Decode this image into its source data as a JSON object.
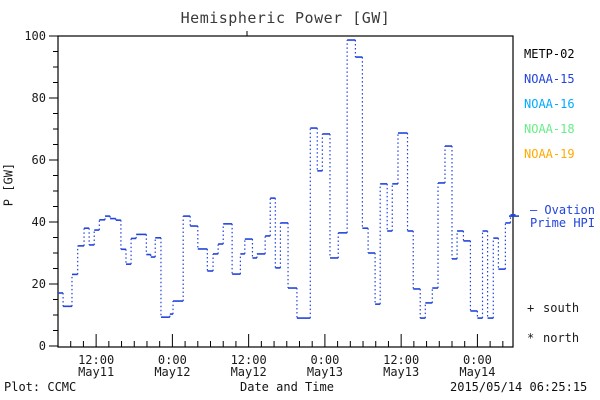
{
  "title": "Hemispheric Power [GW]",
  "colors": {
    "axis": "#000000",
    "title_text": "#3a3a3a",
    "curve": "#2244dd",
    "noaa16": "#00aaff",
    "noaa18": "#66ee88",
    "noaa19": "#ffaa00"
  },
  "y_axis": {
    "label": "P [GW]",
    "ticks": [
      0,
      20,
      40,
      60,
      80,
      100
    ],
    "minor_step": 5,
    "range": [
      0,
      100
    ]
  },
  "x_axis": {
    "label": "Date and Time",
    "major_ticks": [
      {
        "hour": 6,
        "time": "12:00",
        "date": "May11"
      },
      {
        "hour": 18,
        "time": "0:00",
        "date": "May12"
      },
      {
        "hour": 30,
        "time": "12:00",
        "date": "May12"
      },
      {
        "hour": 42,
        "time": "0:00",
        "date": "May13"
      },
      {
        "hour": 54,
        "time": "12:00",
        "date": "May13"
      },
      {
        "hour": 66,
        "time": "0:00",
        "date": "May14"
      }
    ],
    "minor_step_hours": 2,
    "range_hours": [
      0,
      71.6
    ]
  },
  "legend": {
    "satellites": [
      {
        "label": "METP-02",
        "color": "#000000"
      },
      {
        "label": "NOAA-15",
        "color": "#2244dd"
      },
      {
        "label": "NOAA-16",
        "color": "#00aaff"
      },
      {
        "label": "NOAA-18",
        "color": "#66ee88"
      },
      {
        "label": "NOAA-19",
        "color": "#ffaa00"
      }
    ],
    "series_marker": "—",
    "series_line1": "Ovation",
    "series_line2": "Prime HPI",
    "south": {
      "symbol": "+",
      "label": "south"
    },
    "north": {
      "symbol": "*",
      "label": "north"
    }
  },
  "footer": {
    "left": "Plot: CCMC",
    "right": "2015/05/14 06:25:15"
  },
  "chart_data": {
    "type": "line",
    "style": "step-histogram with dotted vertical connectors",
    "title": "Hemispheric Power [GW]",
    "xlabel": "Date and Time",
    "ylabel": "P [GW]",
    "ylim": [
      0,
      100
    ],
    "x_unit": "hours since 2015-05-11 06:00 UT",
    "xlim": [
      0,
      72
    ],
    "grid": false,
    "series_name": "Ovation Prime HPI",
    "x_end_hours": 72.0,
    "latest_value_marker_gw": 41.9,
    "points": [
      [
        0.0,
        17.1
      ],
      [
        0.8,
        12.8
      ],
      [
        2.2,
        23.1
      ],
      [
        3.1,
        32.3
      ],
      [
        4.1,
        38.0
      ],
      [
        4.9,
        32.6
      ],
      [
        5.7,
        37.4
      ],
      [
        6.5,
        40.7
      ],
      [
        7.4,
        41.9
      ],
      [
        8.2,
        41.1
      ],
      [
        9.1,
        40.6
      ],
      [
        9.9,
        31.2
      ],
      [
        10.7,
        26.4
      ],
      [
        11.5,
        34.7
      ],
      [
        12.3,
        36.0
      ],
      [
        13.9,
        29.5
      ],
      [
        14.6,
        28.7
      ],
      [
        15.3,
        34.9
      ],
      [
        16.2,
        9.3
      ],
      [
        17.6,
        10.3
      ],
      [
        18.1,
        14.5
      ],
      [
        19.7,
        41.9
      ],
      [
        20.8,
        38.7
      ],
      [
        22.0,
        31.3
      ],
      [
        23.5,
        24.2
      ],
      [
        24.4,
        29.7
      ],
      [
        25.2,
        32.9
      ],
      [
        26.0,
        39.4
      ],
      [
        27.4,
        23.2
      ],
      [
        28.7,
        29.7
      ],
      [
        29.4,
        34.5
      ],
      [
        30.6,
        28.4
      ],
      [
        31.3,
        29.7
      ],
      [
        32.6,
        35.5
      ],
      [
        33.4,
        47.7
      ],
      [
        34.2,
        25.2
      ],
      [
        35.0,
        39.7
      ],
      [
        36.2,
        18.7
      ],
      [
        37.6,
        9.0
      ],
      [
        39.7,
        70.3
      ],
      [
        40.8,
        56.5
      ],
      [
        41.6,
        68.4
      ],
      [
        42.8,
        28.4
      ],
      [
        44.1,
        36.5
      ],
      [
        45.5,
        98.7
      ],
      [
        46.8,
        93.2
      ],
      [
        47.9,
        38.0
      ],
      [
        48.8,
        30.0
      ],
      [
        49.9,
        13.5
      ],
      [
        50.7,
        52.3
      ],
      [
        51.8,
        37.1
      ],
      [
        52.6,
        52.3
      ],
      [
        53.5,
        68.7
      ],
      [
        55.0,
        37.1
      ],
      [
        55.9,
        18.4
      ],
      [
        57.0,
        9.0
      ],
      [
        57.8,
        13.9
      ],
      [
        58.9,
        18.7
      ],
      [
        59.8,
        52.6
      ],
      [
        60.9,
        64.5
      ],
      [
        62.0,
        28.1
      ],
      [
        62.8,
        37.1
      ],
      [
        63.8,
        33.9
      ],
      [
        64.9,
        11.3
      ],
      [
        66.0,
        9.0
      ],
      [
        66.8,
        37.1
      ],
      [
        67.6,
        9.0
      ],
      [
        68.5,
        34.8
      ],
      [
        69.3,
        24.8
      ],
      [
        70.4,
        39.7
      ],
      [
        71.2,
        42.3
      ]
    ]
  }
}
